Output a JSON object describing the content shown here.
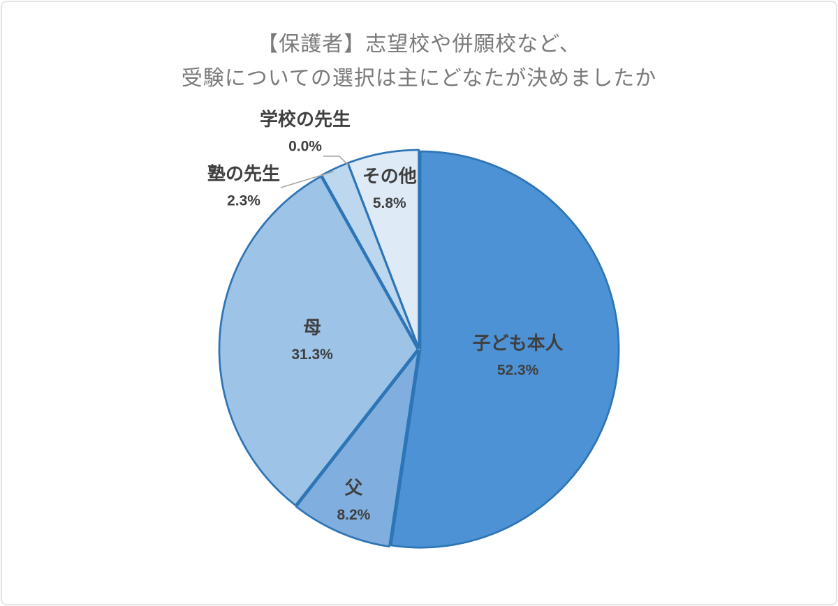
{
  "frame": {
    "background_color": "#FFFFFF",
    "border_color": "#E3E3E3"
  },
  "chart_data": {
    "type": "pie",
    "title_lines": [
      "【保護者】志望校や併願校など、",
      "受験についての選択は主にどなたが決めましたか"
    ],
    "title_color": "#7A7A7A",
    "label_color": "#3F3F3F",
    "slice_border_color": "#2E75B6",
    "leader_line_color": "#A6A6A6",
    "start_angle_deg": 0,
    "direction": "clockwise",
    "legend": "none",
    "slices": [
      {
        "label": "子ども本人",
        "value": 52.3,
        "pct_label": "52.3%",
        "color": "#4D92D5"
      },
      {
        "label": "父",
        "value": 8.2,
        "pct_label": "8.2%",
        "color": "#7FAEDF"
      },
      {
        "label": "母",
        "value": 31.3,
        "pct_label": "31.3%",
        "color": "#9DC3E6"
      },
      {
        "label": "塾の先生",
        "value": 2.3,
        "pct_label": "2.3%",
        "color": "#BDD7EE"
      },
      {
        "label": "学校の先生",
        "value": 0.0,
        "pct_label": "0.0%",
        "color": "#D6E5F4"
      },
      {
        "label": "その他",
        "value": 5.8,
        "pct_label": "5.8%",
        "color": "#DEEBF7"
      }
    ]
  }
}
